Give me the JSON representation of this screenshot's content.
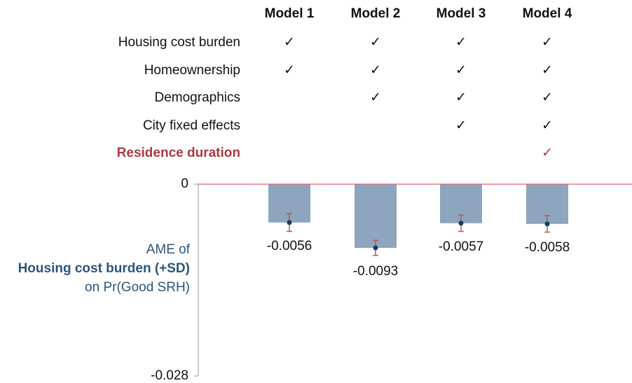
{
  "chart_data": {
    "type": "bar",
    "categories": [
      "Model 1",
      "Model 2",
      "Model 3",
      "Model 4"
    ],
    "rows": [
      {
        "label": "Housing cost burden",
        "checks": [
          "✓",
          "✓",
          "✓",
          "✓"
        ]
      },
      {
        "label": "Homeownership",
        "checks": [
          "✓",
          "✓",
          "✓",
          "✓"
        ]
      },
      {
        "label": "Demographics",
        "checks": [
          null,
          "✓",
          "✓",
          "✓"
        ]
      },
      {
        "label": "City fixed effects",
        "checks": [
          null,
          null,
          "✓",
          "✓"
        ]
      },
      {
        "label": "Residence duration",
        "checks": [
          null,
          null,
          null,
          "✓"
        ],
        "color": "#a83a40",
        "bold": true
      }
    ],
    "ylabel": [
      "AME of",
      "Housing cost burden (+SD)",
      "on Pr(Good SRH)"
    ],
    "values": [
      -0.0056,
      -0.0093,
      -0.0057,
      -0.0058
    ],
    "errors": [
      0.0013,
      0.0011,
      0.0012,
      0.0012
    ],
    "color": "#8da5bd",
    "error_color": "#b4585b",
    "point_color": "#1f3a5f",
    "zero_line_color": "#d9607a",
    "ylim": [
      -0.028,
      0
    ],
    "yticks": [
      0,
      -0.028
    ]
  }
}
